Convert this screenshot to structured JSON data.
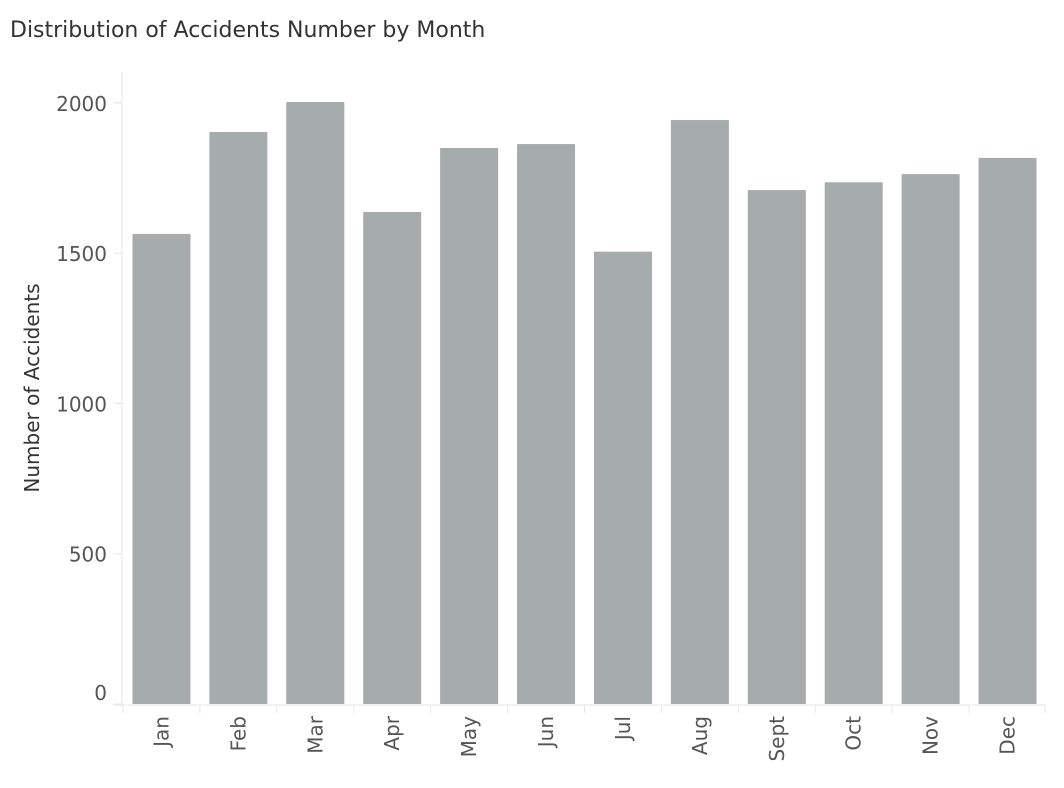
{
  "chart_data": {
    "type": "bar",
    "title": "Distribution of Accidents Number by Month",
    "xlabel": "",
    "ylabel": "Number of Accidents",
    "categories": [
      "Jan",
      "Feb",
      "Mar",
      "Apr",
      "May",
      "Jun",
      "Jul",
      "Aug",
      "Sept",
      "Oct",
      "Nov",
      "Dec"
    ],
    "values": [
      1564,
      1903,
      2003,
      1637,
      1850,
      1863,
      1505,
      1943,
      1710,
      1736,
      1763,
      1817
    ],
    "yticks": [
      0,
      500,
      1000,
      1500,
      2000
    ],
    "ylim": [
      0,
      2003
    ],
    "grid": false,
    "bar_color": "#a6abab",
    "axis_color": "#e6e6e6",
    "text_color": "#555555"
  }
}
